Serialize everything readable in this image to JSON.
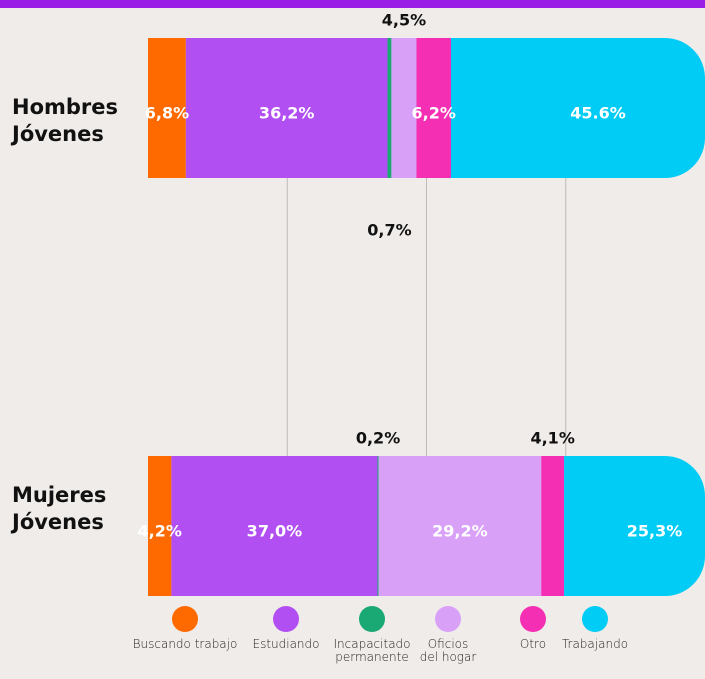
{
  "chart_data": {
    "type": "stacked-bar-horizontal",
    "categories": [
      "Hombres Jóvenes",
      "Mujeres Jóvenes"
    ],
    "series": [
      {
        "name": "Buscando trabajo",
        "color": "#ff6a00",
        "values": [
          6.8,
          4.2
        ],
        "value_labels": [
          "6,8%",
          "4,2%"
        ]
      },
      {
        "name": "Estudiando",
        "color": "#b24ff2",
        "values": [
          36.2,
          37.0
        ],
        "value_labels": [
          "36,2%",
          "37,0%"
        ]
      },
      {
        "name": "Incapacitado permanente",
        "color": "#1aa874",
        "values": [
          0.7,
          0.2
        ],
        "value_labels": [
          "0,7%",
          "0,2%"
        ]
      },
      {
        "name": "Oficios del hogar",
        "color": "#d9a0f7",
        "values": [
          4.5,
          29.2
        ],
        "value_labels": [
          "4,5%",
          "29,2%"
        ]
      },
      {
        "name": "Otro",
        "color": "#f52fb4",
        "values": [
          6.2,
          4.1
        ],
        "value_labels": [
          "6,2%",
          "4,1%"
        ]
      },
      {
        "name": "Trabajando",
        "color": "#00ccf5",
        "values": [
          45.6,
          25.3
        ],
        "value_labels": [
          "45.6%",
          "25,3%"
        ]
      }
    ],
    "xlim": [
      0,
      100
    ],
    "xticks": [
      25,
      50,
      75
    ],
    "grid": true
  }
}
